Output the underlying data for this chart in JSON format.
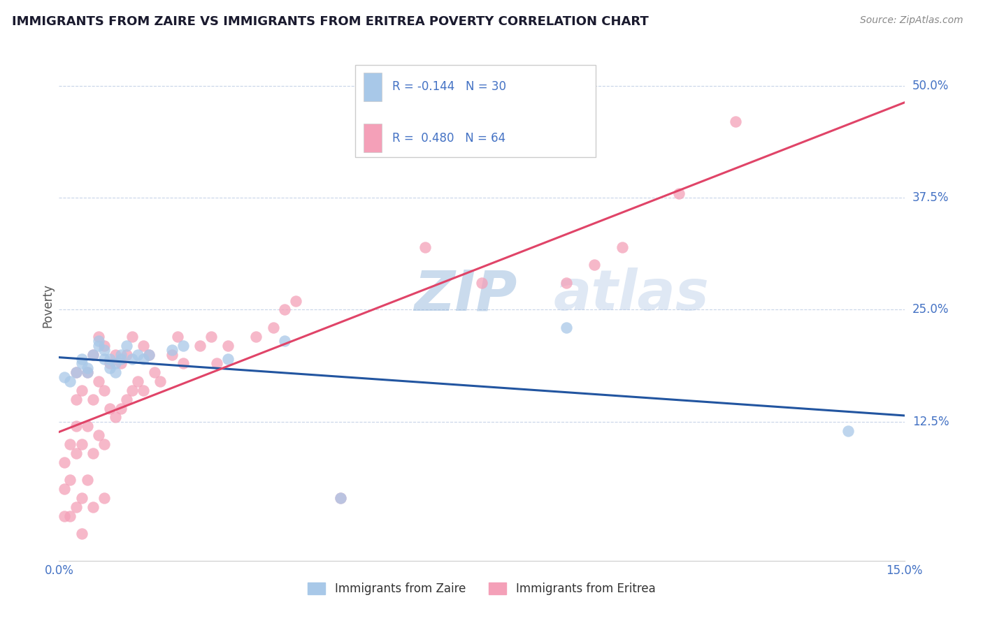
{
  "title": "IMMIGRANTS FROM ZAIRE VS IMMIGRANTS FROM ERITREA POVERTY CORRELATION CHART",
  "source": "Source: ZipAtlas.com",
  "ylabel": "Poverty",
  "xlim": [
    0.0,
    0.15
  ],
  "ylim": [
    -0.03,
    0.54
  ],
  "yticks": [
    0.125,
    0.25,
    0.375,
    0.5
  ],
  "ytick_labels": [
    "12.5%",
    "25.0%",
    "37.5%",
    "50.0%"
  ],
  "watermark": "ZIPatlas",
  "zaire_color": "#a8c8e8",
  "eritrea_color": "#f4a0b8",
  "zaire_line_color": "#2255a0",
  "eritrea_line_color": "#e04468",
  "background_color": "#ffffff",
  "grid_color": "#c8d4e8",
  "title_color": "#1a1a2e",
  "axis_color": "#4472c4",
  "zaire_x": [
    0.001,
    0.002,
    0.003,
    0.004,
    0.004,
    0.005,
    0.005,
    0.006,
    0.007,
    0.007,
    0.008,
    0.008,
    0.009,
    0.009,
    0.01,
    0.01,
    0.011,
    0.011,
    0.012,
    0.013,
    0.014,
    0.015,
    0.016,
    0.02,
    0.022,
    0.03,
    0.04,
    0.05,
    0.09,
    0.14
  ],
  "zaire_y": [
    0.175,
    0.17,
    0.18,
    0.19,
    0.195,
    0.18,
    0.185,
    0.2,
    0.21,
    0.215,
    0.195,
    0.205,
    0.185,
    0.195,
    0.18,
    0.19,
    0.2,
    0.195,
    0.21,
    0.195,
    0.2,
    0.195,
    0.2,
    0.205,
    0.21,
    0.195,
    0.215,
    0.04,
    0.23,
    0.115
  ],
  "eritrea_x": [
    0.001,
    0.001,
    0.001,
    0.002,
    0.002,
    0.002,
    0.003,
    0.003,
    0.003,
    0.003,
    0.003,
    0.004,
    0.004,
    0.004,
    0.004,
    0.005,
    0.005,
    0.005,
    0.006,
    0.006,
    0.006,
    0.006,
    0.007,
    0.007,
    0.007,
    0.008,
    0.008,
    0.008,
    0.008,
    0.009,
    0.009,
    0.01,
    0.01,
    0.011,
    0.011,
    0.012,
    0.012,
    0.013,
    0.013,
    0.014,
    0.015,
    0.015,
    0.016,
    0.017,
    0.018,
    0.02,
    0.021,
    0.022,
    0.025,
    0.027,
    0.028,
    0.03,
    0.035,
    0.038,
    0.04,
    0.042,
    0.05,
    0.065,
    0.075,
    0.09,
    0.095,
    0.1,
    0.11,
    0.12
  ],
  "eritrea_y": [
    0.08,
    0.05,
    0.02,
    0.1,
    0.06,
    0.02,
    0.15,
    0.09,
    0.03,
    0.18,
    0.12,
    0.16,
    0.1,
    0.04,
    0.0,
    0.18,
    0.12,
    0.06,
    0.2,
    0.15,
    0.09,
    0.03,
    0.22,
    0.17,
    0.11,
    0.21,
    0.16,
    0.1,
    0.04,
    0.19,
    0.14,
    0.2,
    0.13,
    0.19,
    0.14,
    0.2,
    0.15,
    0.22,
    0.16,
    0.17,
    0.21,
    0.16,
    0.2,
    0.18,
    0.17,
    0.2,
    0.22,
    0.19,
    0.21,
    0.22,
    0.19,
    0.21,
    0.22,
    0.23,
    0.25,
    0.26,
    0.04,
    0.32,
    0.28,
    0.28,
    0.3,
    0.32,
    0.38,
    0.46
  ]
}
